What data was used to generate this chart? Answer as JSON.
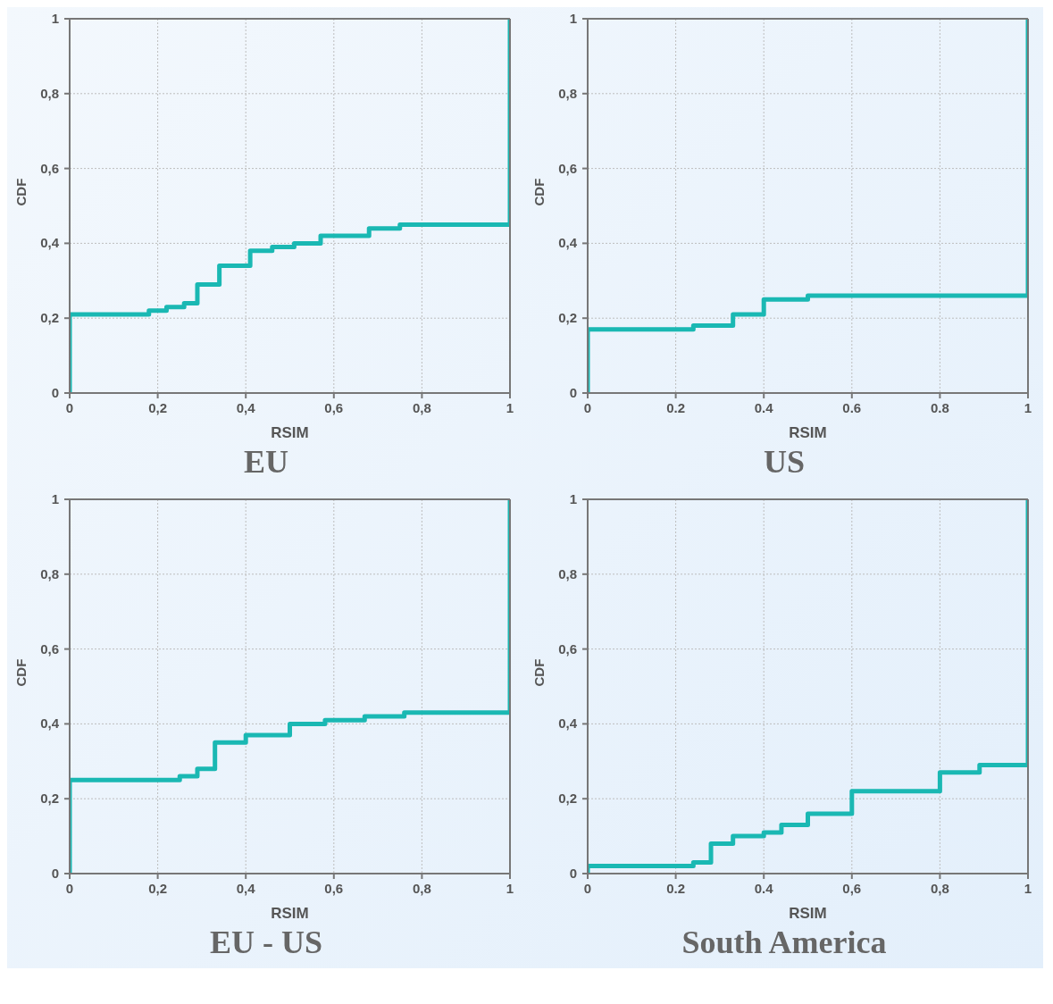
{
  "chart_data": [
    {
      "type": "step",
      "title": "EU",
      "xlabel": "RSIM",
      "ylabel": "CDF",
      "xlim": [
        0,
        1
      ],
      "ylim": [
        0,
        1
      ],
      "xticks": [
        {
          "value": 0,
          "label": "0"
        },
        {
          "value": 0.2,
          "label": "0,2"
        },
        {
          "value": 0.4,
          "label": "0,4"
        },
        {
          "value": 0.6,
          "label": "0,6"
        },
        {
          "value": 0.8,
          "label": "0,8"
        },
        1
      ],
      "yticks": [
        {
          "value": 0,
          "label": "0"
        },
        {
          "value": 0.2,
          "label": "0,2"
        },
        {
          "value": 0.4,
          "label": "0,4"
        },
        {
          "value": 0.6,
          "label": "0,6"
        },
        {
          "value": 0.8,
          "label": "0,8"
        },
        {
          "value": 1,
          "label": "1"
        }
      ],
      "grid": true,
      "marker": "none",
      "line_style": "solid",
      "series": [
        {
          "color": "#1ab8b3",
          "x": [
            0,
            0,
            0.18,
            0.22,
            0.26,
            0.29,
            0.34,
            0.41,
            0.46,
            0.51,
            0.57,
            0.68,
            0.75,
            1
          ],
          "values": [
            0,
            0.21,
            0.22,
            0.23,
            0.24,
            0.29,
            0.34,
            0.38,
            0.39,
            0.4,
            0.42,
            0.44,
            0.45,
            1
          ]
        }
      ]
    },
    {
      "type": "step",
      "title": "US",
      "xlabel": "RSIM",
      "ylabel": "CDF",
      "xlim": [
        0,
        1
      ],
      "ylim": [
        0,
        1
      ],
      "xticks": [
        {
          "value": 0,
          "label": "0"
        },
        0.2,
        0.4,
        0.6,
        0.8,
        1
      ],
      "yticks": [
        {
          "value": 0,
          "label": "0"
        },
        {
          "value": 0.2,
          "label": "0,2"
        },
        {
          "value": 0.4,
          "label": "0,4"
        },
        {
          "value": 0.6,
          "label": "0,6"
        },
        {
          "value": 0.8,
          "label": "0,8"
        },
        {
          "value": 1,
          "label": "1"
        }
      ],
      "grid": true,
      "marker": "none",
      "line_style": "solid",
      "series": [
        {
          "color": "#1ab8b3",
          "x": [
            0,
            0,
            0.24,
            0.33,
            0.4,
            0.5,
            1
          ],
          "values": [
            0,
            0.17,
            0.18,
            0.21,
            0.25,
            0.26,
            1
          ]
        }
      ]
    },
    {
      "type": "step",
      "title": "EU - US",
      "xlabel": "RSIM",
      "ylabel": "CDF",
      "xlim": [
        0,
        1
      ],
      "ylim": [
        0,
        1
      ],
      "xticks": [
        {
          "value": 0,
          "label": "0"
        },
        {
          "value": 0.2,
          "label": "0,2"
        },
        {
          "value": 0.4,
          "label": "0,4"
        },
        {
          "value": 0.6,
          "label": "0,6"
        },
        {
          "value": 0.8,
          "label": "0,8"
        },
        1
      ],
      "yticks": [
        {
          "value": 0,
          "label": "0"
        },
        {
          "value": 0.2,
          "label": "0,2"
        },
        {
          "value": 0.4,
          "label": "0,4"
        },
        {
          "value": 0.6,
          "label": "0,6"
        },
        {
          "value": 0.8,
          "label": "0,8"
        },
        {
          "value": 1,
          "label": "1"
        }
      ],
      "grid": true,
      "marker": "none",
      "line_style": "solid",
      "series": [
        {
          "color": "#1ab8b3",
          "x": [
            0,
            0,
            0.25,
            0.29,
            0.33,
            0.4,
            0.5,
            0.58,
            0.67,
            0.76,
            1
          ],
          "values": [
            0,
            0.25,
            0.26,
            0.28,
            0.35,
            0.37,
            0.4,
            0.41,
            0.42,
            0.43,
            1
          ]
        }
      ]
    },
    {
      "type": "step",
      "title": "South America",
      "xlabel": "RSIM",
      "ylabel": "CDF",
      "xlim": [
        0,
        1
      ],
      "ylim": [
        0,
        1
      ],
      "xticks": [
        {
          "value": 0,
          "label": "0"
        },
        0.2,
        0.4,
        {
          "value": 0.6,
          "label": "0,6"
        },
        {
          "value": 0.8,
          "label": "0,8"
        },
        1
      ],
      "yticks": [
        {
          "value": 0,
          "label": "0"
        },
        {
          "value": 0.2,
          "label": "0,2"
        },
        {
          "value": 0.4,
          "label": "0,4"
        },
        {
          "value": 0.6,
          "label": "0,6"
        },
        {
          "value": 0.8,
          "label": "0,8"
        },
        {
          "value": 1,
          "label": "1"
        }
      ],
      "grid": true,
      "marker": "none",
      "line_style": "solid",
      "series": [
        {
          "color": "#1ab8b3",
          "x": [
            0,
            0,
            0.24,
            0.28,
            0.33,
            0.4,
            0.44,
            0.5,
            0.6,
            0.8,
            0.89,
            1
          ],
          "values": [
            0,
            0.02,
            0.03,
            0.08,
            0.1,
            0.11,
            0.13,
            0.16,
            0.22,
            0.27,
            0.29,
            1
          ]
        }
      ]
    }
  ]
}
